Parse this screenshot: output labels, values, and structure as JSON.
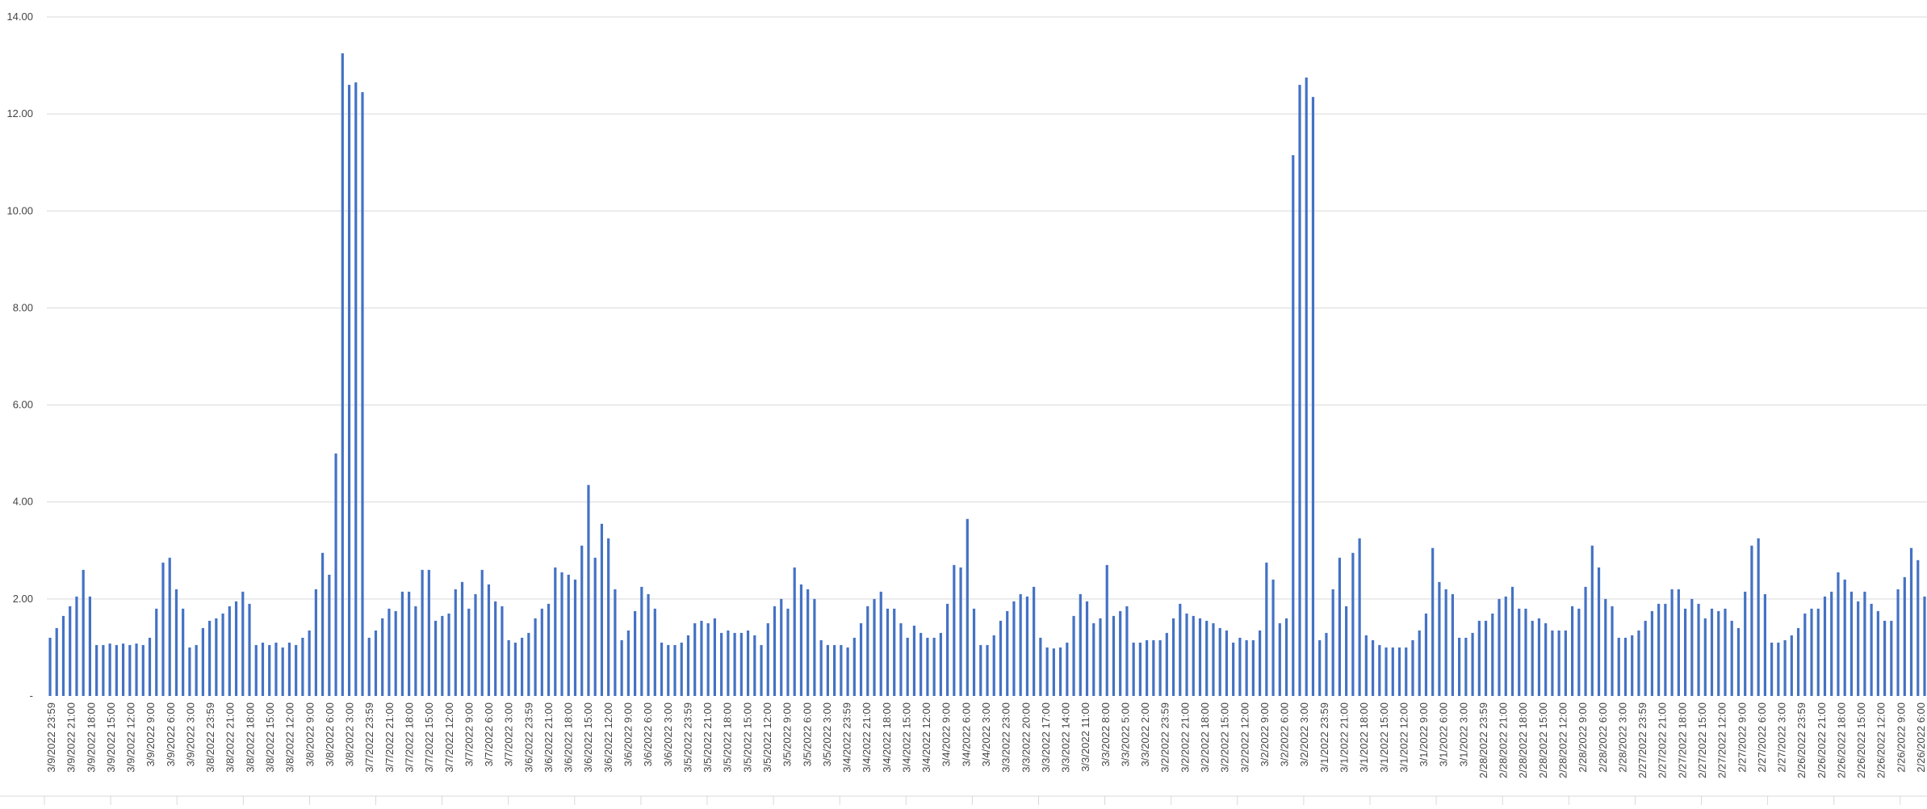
{
  "chart_data": {
    "type": "bar",
    "title": "",
    "xlabel": "",
    "ylabel": "",
    "ylim": [
      0,
      14
    ],
    "grid": true,
    "legend": "none",
    "bar_color": "#4472c4",
    "grid_color": "#d9d9d9",
    "y_ticks": [
      "-",
      "2.00",
      "4.00",
      "6.00",
      "8.00",
      "10.00",
      "12.00",
      "14.00"
    ],
    "x_tick_labels": [
      "3/9/2022 23:59",
      "3/9/2022 21:00",
      "3/9/2022 18:00",
      "3/9/2022 15:00",
      "3/9/2022 12:00",
      "3/9/2022 9:00",
      "3/9/2022 6:00",
      "3/9/2022 3:00",
      "3/8/2022 23:59",
      "3/8/2022 21:00",
      "3/8/2022 18:00",
      "3/8/2022 15:00",
      "3/8/2022 12:00",
      "3/8/2022 9:00",
      "3/8/2022 6:00",
      "3/8/2022 3:00",
      "3/7/2022 23:59",
      "3/7/2022 21:00",
      "3/7/2022 18:00",
      "3/7/2022 15:00",
      "3/7/2022 12:00",
      "3/7/2022 9:00",
      "3/7/2022 6:00",
      "3/7/2022 3:00",
      "3/6/2022 23:59",
      "3/6/2022 21:00",
      "3/6/2022 18:00",
      "3/6/2022 15:00",
      "3/6/2022 12:00",
      "3/6/2022 9:00",
      "3/6/2022 6:00",
      "3/6/2022 3:00",
      "3/5/2022 23:59",
      "3/5/2022 21:00",
      "3/5/2022 18:00",
      "3/5/2022 15:00",
      "3/5/2022 12:00",
      "3/5/2022 9:00",
      "3/5/2022 6:00",
      "3/5/2022 3:00",
      "3/4/2022 23:59",
      "3/4/2022 21:00",
      "3/4/2022 18:00",
      "3/4/2022 15:00",
      "3/4/2022 12:00",
      "3/4/2022 9:00",
      "3/4/2022 6:00",
      "3/4/2022 3:00",
      "3/3/2022 23:00",
      "3/3/2022 20:00",
      "3/3/2022 17:00",
      "3/3/2022 14:00",
      "3/3/2022 11:00",
      "3/3/2022 8:00",
      "3/3/2022 5:00",
      "3/3/2022 2:00",
      "3/2/2022 23:59",
      "3/2/2022 21:00",
      "3/2/2022 18:00",
      "3/2/2022 15:00",
      "3/2/2022 12:00",
      "3/2/2022 9:00",
      "3/2/2022 6:00",
      "3/2/2022 3:00",
      "3/1/2022 23:59",
      "3/1/2022 21:00",
      "3/1/2022 18:00",
      "3/1/2022 15:00",
      "3/1/2022 12:00",
      "3/1/2022 9:00",
      "3/1/2022 6:00",
      "3/1/2022 3:00",
      "2/28/2022 23:59",
      "2/28/2022 21:00",
      "2/28/2022 18:00",
      "2/28/2022 15:00",
      "2/28/2022 12:00",
      "2/28/2022 9:00",
      "2/28/2022 6:00",
      "2/28/2022 3:00",
      "2/27/2022 23:59",
      "2/27/2022 21:00",
      "2/27/2022 18:00",
      "2/27/2022 15:00",
      "2/27/2022 12:00",
      "2/27/2022 9:00",
      "2/27/2022 6:00",
      "2/27/2022 3:00",
      "2/26/2022 23:59",
      "2/26/2022 21:00",
      "2/26/2022 18:00",
      "2/26/2022 15:00",
      "2/26/2022 12:00",
      "2/26/2022 9:00",
      "2/26/2022 6:00"
    ],
    "values": [
      1.2,
      1.4,
      1.65,
      1.85,
      2.05,
      2.6,
      2.05,
      1.05,
      1.05,
      1.08,
      1.05,
      1.08,
      1.05,
      1.08,
      1.05,
      1.2,
      1.8,
      2.75,
      2.85,
      2.2,
      1.8,
      1.0,
      1.05,
      1.4,
      1.55,
      1.6,
      1.7,
      1.85,
      1.95,
      2.15,
      1.9,
      1.05,
      1.1,
      1.05,
      1.1,
      1.0,
      1.1,
      1.05,
      1.2,
      1.35,
      2.2,
      2.95,
      2.5,
      5.0,
      13.25,
      12.6,
      12.65,
      12.45,
      1.2,
      1.35,
      1.6,
      1.8,
      1.75,
      2.15,
      2.15,
      1.85,
      2.6,
      2.6,
      1.55,
      1.65,
      1.7,
      2.2,
      2.35,
      1.8,
      2.1,
      2.6,
      2.3,
      1.95,
      1.85,
      1.15,
      1.1,
      1.2,
      1.3,
      1.6,
      1.8,
      1.9,
      2.65,
      2.55,
      2.5,
      2.4,
      3.1,
      4.35,
      2.85,
      3.55,
      3.25,
      2.2,
      1.15,
      1.35,
      1.75,
      2.25,
      2.1,
      1.8,
      1.1,
      1.05,
      1.05,
      1.1,
      1.25,
      1.5,
      1.55,
      1.5,
      1.6,
      1.3,
      1.35,
      1.3,
      1.3,
      1.35,
      1.25,
      1.05,
      1.5,
      1.85,
      2.0,
      1.8,
      2.65,
      2.3,
      2.2,
      2.0,
      1.15,
      1.05,
      1.05,
      1.05,
      1.0,
      1.2,
      1.5,
      1.85,
      2.0,
      2.15,
      1.8,
      1.8,
      1.5,
      1.2,
      1.45,
      1.3,
      1.2,
      1.2,
      1.3,
      1.9,
      2.7,
      2.65,
      3.65,
      1.8,
      1.05,
      1.05,
      1.25,
      1.55,
      1.75,
      1.95,
      2.1,
      2.05,
      2.25,
      1.2,
      1.0,
      0.98,
      1.0,
      1.1,
      1.65,
      2.1,
      1.95,
      1.5,
      1.6,
      2.7,
      1.65,
      1.75,
      1.85,
      1.1,
      1.1,
      1.15,
      1.15,
      1.15,
      1.3,
      1.6,
      1.9,
      1.7,
      1.65,
      1.6,
      1.55,
      1.5,
      1.4,
      1.35,
      1.1,
      1.2,
      1.15,
      1.15,
      1.35,
      2.75,
      2.4,
      1.5,
      1.6,
      11.15,
      12.6,
      12.75,
      12.35,
      1.15,
      1.3,
      2.2,
      2.85,
      1.85,
      2.95,
      3.25,
      1.25,
      1.15,
      1.05,
      1.0,
      1.0,
      1.0,
      1.0,
      1.15,
      1.35,
      1.7,
      3.05,
      2.35,
      2.2,
      2.1,
      1.2,
      1.2,
      1.3,
      1.55,
      1.55,
      1.7,
      2.0,
      2.05,
      2.25,
      1.8,
      1.8,
      1.55,
      1.6,
      1.5,
      1.35,
      1.35,
      1.35,
      1.85,
      1.8,
      2.25,
      3.1,
      2.65,
      2.0,
      1.85,
      1.2,
      1.2,
      1.25,
      1.35,
      1.55,
      1.75,
      1.9,
      1.9,
      2.2,
      2.2,
      1.8,
      2.0,
      1.9,
      1.6,
      1.8,
      1.75,
      1.8,
      1.55,
      1.4,
      2.15,
      3.1,
      3.25,
      2.1,
      1.1,
      1.1,
      1.15,
      1.25,
      1.4,
      1.7,
      1.8,
      1.8,
      2.05,
      2.15,
      2.55,
      2.4,
      2.15,
      1.95,
      2.15,
      1.9,
      1.75,
      1.55,
      1.55,
      2.2,
      2.45,
      3.05,
      2.8,
      2.05
    ]
  }
}
